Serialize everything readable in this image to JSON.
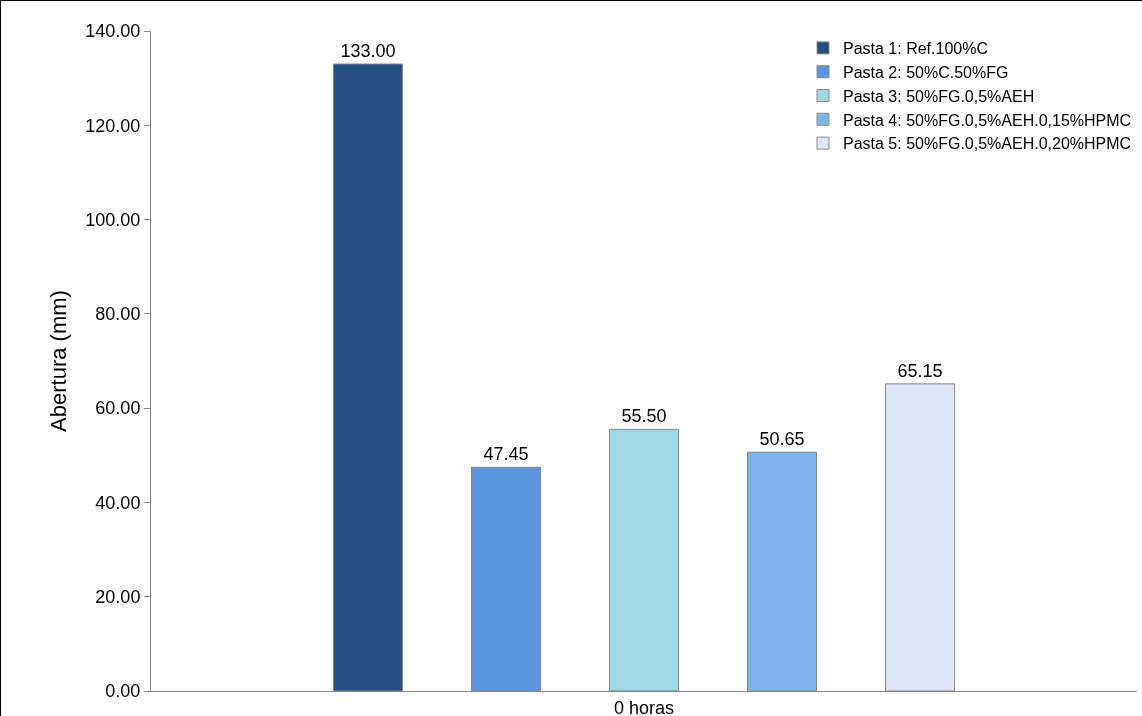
{
  "chart_data": {
    "type": "bar",
    "ylabel": "Abertura (mm)",
    "categories": [
      "0 horas"
    ],
    "series": [
      {
        "name": "Pasta 1: Ref.100%C",
        "color": "#264f80",
        "values": [
          133.0
        ],
        "value_labels": [
          "133.00"
        ]
      },
      {
        "name": "Pasta 2: 50%C.50%FG",
        "color": "#5b95de",
        "values": [
          47.45
        ],
        "value_labels": [
          "47.45"
        ]
      },
      {
        "name": "Pasta 3: 50%FG.0,5%AEH",
        "color": "#9fd8e6",
        "values": [
          55.5
        ],
        "value_labels": [
          "55.50"
        ]
      },
      {
        "name": "Pasta 4: 50%FG.0,5%AEH.0,15%HPMC",
        "color": "#7cb6e8",
        "values": [
          50.65
        ],
        "value_labels": [
          "50.65"
        ]
      },
      {
        "name": "Pasta 5: 50%FG.0,5%AEH.0,20%HPMC",
        "color": "#dde6f2",
        "values": [
          65.15
        ],
        "value_labels": [
          "65.15"
        ]
      }
    ],
    "ylim": [
      0,
      140
    ],
    "yticks": [
      {
        "value": 0,
        "label": "0.00"
      },
      {
        "value": 20,
        "label": "20.00"
      },
      {
        "value": 40,
        "label": "40.00"
      },
      {
        "value": 60,
        "label": "60.00"
      },
      {
        "value": 80,
        "label": "80.00"
      },
      {
        "value": 100,
        "label": "100.00"
      },
      {
        "value": 120,
        "label": "120.00"
      },
      {
        "value": 140,
        "label": "140.00"
      }
    ],
    "grid": false,
    "legend": "top right"
  }
}
